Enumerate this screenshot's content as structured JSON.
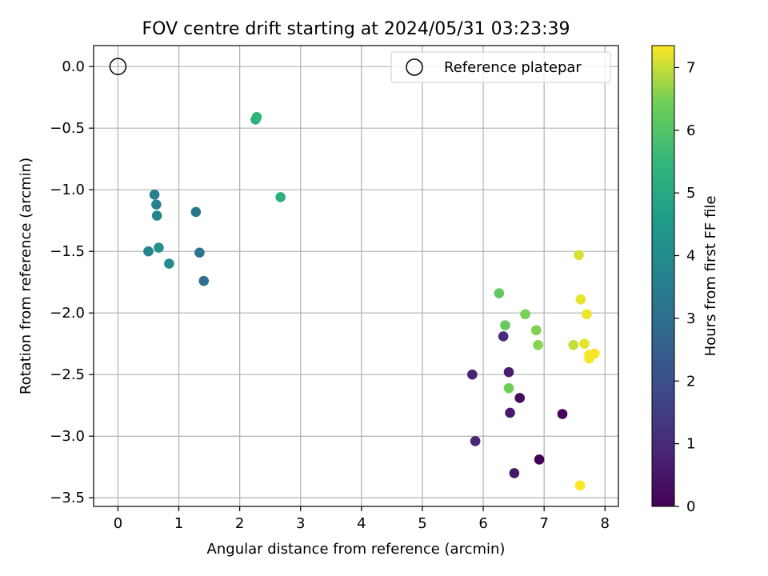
{
  "chart_data": {
    "type": "scatter",
    "title": "FOV centre drift starting at 2024/05/31 03:23:39",
    "xlabel": "Angular distance from reference (arcmin)",
    "ylabel": "Rotation from reference (arcmin)",
    "xlim": [
      -0.4,
      8.22
    ],
    "ylim": [
      -3.57,
      0.17
    ],
    "xticks": [
      0,
      1,
      2,
      3,
      4,
      5,
      6,
      7,
      8
    ],
    "yticks": [
      0.0,
      -0.5,
      -1.0,
      -1.5,
      -2.0,
      -2.5,
      -3.0,
      -3.5
    ],
    "ytick_labels": [
      "0.0",
      "−0.5",
      "−1.0",
      "−1.5",
      "−2.0",
      "−2.5",
      "−3.0",
      "−3.5"
    ],
    "grid": true,
    "legend": {
      "position": "upper right",
      "entries": [
        "Reference platepar"
      ]
    },
    "reference_point": {
      "x": 0.0,
      "y": 0.0,
      "label": "Reference platepar"
    },
    "colorbar": {
      "label": "Hours from first FF file",
      "range": [
        0,
        7.35
      ],
      "ticks": [
        0,
        1,
        2,
        3,
        4,
        5,
        6,
        7
      ],
      "colormap": "viridis"
    },
    "points": [
      {
        "x": 6.92,
        "y": -3.19,
        "hours": 0.0
      },
      {
        "x": 7.3,
        "y": -2.82,
        "hours": 0.1
      },
      {
        "x": 6.6,
        "y": -2.69,
        "hours": 0.3
      },
      {
        "x": 6.51,
        "y": -3.3,
        "hours": 0.5
      },
      {
        "x": 6.44,
        "y": -2.81,
        "hours": 0.6
      },
      {
        "x": 6.42,
        "y": -2.48,
        "hours": 0.7
      },
      {
        "x": 5.82,
        "y": -2.5,
        "hours": 0.8
      },
      {
        "x": 5.87,
        "y": -3.04,
        "hours": 0.9
      },
      {
        "x": 6.33,
        "y": -2.19,
        "hours": 1.0
      },
      {
        "x": 1.41,
        "y": -1.74,
        "hours": 3.0
      },
      {
        "x": 1.34,
        "y": -1.51,
        "hours": 3.1
      },
      {
        "x": 1.28,
        "y": -1.18,
        "hours": 3.2
      },
      {
        "x": 0.6,
        "y": -1.04,
        "hours": 3.6
      },
      {
        "x": 0.63,
        "y": -1.12,
        "hours": 3.7
      },
      {
        "x": 0.64,
        "y": -1.21,
        "hours": 3.75
      },
      {
        "x": 0.5,
        "y": -1.5,
        "hours": 3.8
      },
      {
        "x": 0.84,
        "y": -1.6,
        "hours": 4.0
      },
      {
        "x": 0.67,
        "y": -1.47,
        "hours": 4.2
      },
      {
        "x": 2.67,
        "y": -1.06,
        "hours": 5.2
      },
      {
        "x": 2.26,
        "y": -0.43,
        "hours": 5.3
      },
      {
        "x": 2.28,
        "y": -0.41,
        "hours": 5.35
      },
      {
        "x": 6.26,
        "y": -1.84,
        "hours": 6.2
      },
      {
        "x": 6.36,
        "y": -2.1,
        "hours": 6.3
      },
      {
        "x": 6.42,
        "y": -2.61,
        "hours": 6.4
      },
      {
        "x": 6.69,
        "y": -2.01,
        "hours": 6.5
      },
      {
        "x": 6.87,
        "y": -2.14,
        "hours": 6.55
      },
      {
        "x": 6.9,
        "y": -2.26,
        "hours": 6.6
      },
      {
        "x": 7.48,
        "y": -2.26,
        "hours": 7.0
      },
      {
        "x": 7.57,
        "y": -1.53,
        "hours": 7.1
      },
      {
        "x": 7.6,
        "y": -1.89,
        "hours": 7.2
      },
      {
        "x": 7.66,
        "y": -2.25,
        "hours": 7.2
      },
      {
        "x": 7.7,
        "y": -2.01,
        "hours": 7.25
      },
      {
        "x": 7.74,
        "y": -2.34,
        "hours": 7.3
      },
      {
        "x": 7.83,
        "y": -2.33,
        "hours": 7.3
      },
      {
        "x": 7.74,
        "y": -2.37,
        "hours": 7.3
      },
      {
        "x": 7.59,
        "y": -3.4,
        "hours": 7.35
      }
    ]
  }
}
